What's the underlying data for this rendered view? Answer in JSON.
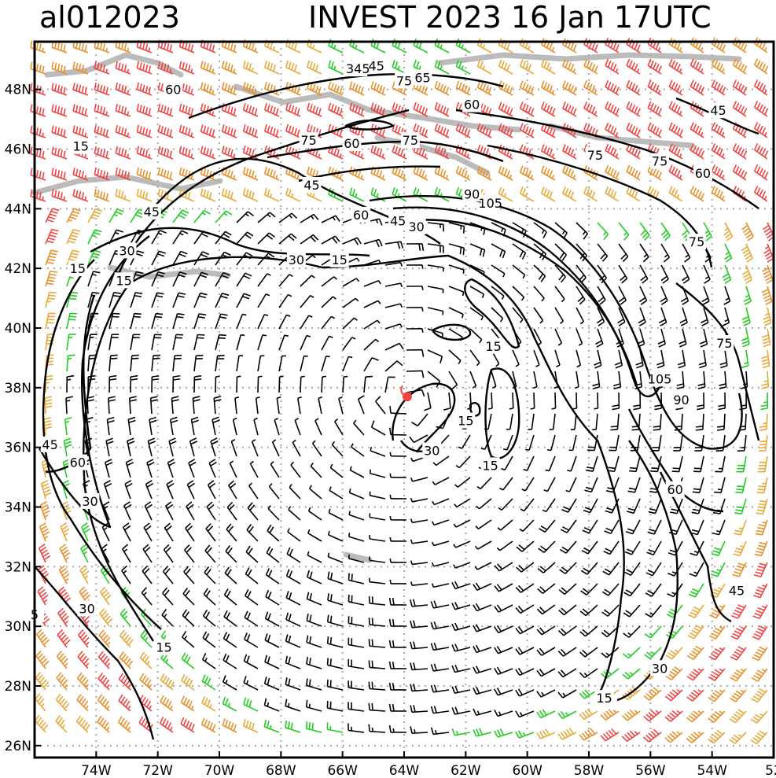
{
  "header": {
    "storm_id": "al012023",
    "title": "INVEST 2023 16 Jan 17UTC"
  },
  "map": {
    "lon_range": [
      -76,
      -52
    ],
    "lat_range": [
      25.6,
      49.6
    ],
    "lat_labels": [
      {
        "lat": 48,
        "label": "48N"
      },
      {
        "lat": 46,
        "label": "46N"
      },
      {
        "lat": 44,
        "label": "44N"
      },
      {
        "lat": 42,
        "label": "42N"
      },
      {
        "lat": 40,
        "label": "40N"
      },
      {
        "lat": 38,
        "label": "38N"
      },
      {
        "lat": 36,
        "label": "36N"
      },
      {
        "lat": 34,
        "label": "34N"
      },
      {
        "lat": 32,
        "label": "32N"
      },
      {
        "lat": 30,
        "label": "30N"
      },
      {
        "lat": 28,
        "label": "28N"
      },
      {
        "lat": 26,
        "label": "26N"
      }
    ],
    "lon_labels": [
      {
        "lon": -74,
        "label": "74W"
      },
      {
        "lon": -72,
        "label": "72W"
      },
      {
        "lon": -70,
        "label": "70W"
      },
      {
        "lon": -68,
        "label": "68W"
      },
      {
        "lon": -66,
        "label": "66W"
      },
      {
        "lon": -64,
        "label": "64W"
      },
      {
        "lon": -62,
        "label": "62W"
      },
      {
        "lon": -60,
        "label": "60W"
      },
      {
        "lon": -58,
        "label": "58W"
      },
      {
        "lon": -56,
        "label": "56W"
      },
      {
        "lon": -54,
        "label": "54W"
      },
      {
        "lon": -52,
        "label": "52"
      }
    ],
    "center": {
      "lon": -63.9,
      "lat": 37.7
    },
    "contour_labels": [
      {
        "text": "45",
        "lon": -64.9,
        "lat": 48.8
      },
      {
        "text": "345",
        "lon": -65.5,
        "lat": 48.7
      },
      {
        "text": "75",
        "lon": -64.0,
        "lat": 48.3
      },
      {
        "text": "65",
        "lon": -63.4,
        "lat": 48.4
      },
      {
        "text": "60",
        "lon": -71.5,
        "lat": 48.0
      },
      {
        "text": "60",
        "lon": -61.8,
        "lat": 47.5
      },
      {
        "text": "45",
        "lon": -53.8,
        "lat": 47.3
      },
      {
        "text": "15",
        "lon": -74.5,
        "lat": 46.1
      },
      {
        "text": "75",
        "lon": -67.1,
        "lat": 46.3
      },
      {
        "text": "60",
        "lon": -65.7,
        "lat": 46.2
      },
      {
        "text": "75",
        "lon": -63.8,
        "lat": 46.3
      },
      {
        "text": "75",
        "lon": -57.8,
        "lat": 45.8
      },
      {
        "text": "75",
        "lon": -55.7,
        "lat": 45.6
      },
      {
        "text": "60",
        "lon": -54.3,
        "lat": 45.2
      },
      {
        "text": "45",
        "lon": -67.0,
        "lat": 44.8
      },
      {
        "text": "90",
        "lon": -61.8,
        "lat": 44.5
      },
      {
        "text": "105",
        "lon": -61.2,
        "lat": 44.2
      },
      {
        "text": "45",
        "lon": -72.2,
        "lat": 43.9
      },
      {
        "text": "60",
        "lon": -65.4,
        "lat": 43.8
      },
      {
        "text": "45",
        "lon": -64.2,
        "lat": 43.6
      },
      {
        "text": "30",
        "lon": -63.6,
        "lat": 43.4
      },
      {
        "text": "75",
        "lon": -54.5,
        "lat": 42.9
      },
      {
        "text": "30",
        "lon": -73.0,
        "lat": 42.6
      },
      {
        "text": "30",
        "lon": -67.5,
        "lat": 42.3
      },
      {
        "text": "15",
        "lon": -66.1,
        "lat": 42.3
      },
      {
        "text": "15",
        "lon": -74.6,
        "lat": 42.0
      },
      {
        "text": "15",
        "lon": -73.1,
        "lat": 41.6
      },
      {
        "text": "15",
        "lon": -61.1,
        "lat": 39.4
      },
      {
        "text": "75",
        "lon": -53.6,
        "lat": 39.5
      },
      {
        "text": "105",
        "lon": -55.7,
        "lat": 38.3
      },
      {
        "text": "90",
        "lon": -55.0,
        "lat": 37.6
      },
      {
        "text": "15",
        "lon": -62.0,
        "lat": 36.9
      },
      {
        "text": "45",
        "lon": -75.5,
        "lat": 36.1
      },
      {
        "text": "60",
        "lon": -74.6,
        "lat": 35.5
      },
      {
        "text": "30",
        "lon": -63.1,
        "lat": 35.9
      },
      {
        "text": "15",
        "lon": -61.2,
        "lat": 35.4
      },
      {
        "text": "60",
        "lon": -55.2,
        "lat": 34.6
      },
      {
        "text": "30",
        "lon": -74.2,
        "lat": 34.2
      },
      {
        "text": "45",
        "lon": -53.2,
        "lat": 31.2
      },
      {
        "text": "5",
        "lon": -76.0,
        "lat": 30.4
      },
      {
        "text": "30",
        "lon": -74.3,
        "lat": 30.6
      },
      {
        "text": "15",
        "lon": -71.8,
        "lat": 29.3
      },
      {
        "text": "30",
        "lon": -55.7,
        "lat": 28.6
      },
      {
        "text": "15",
        "lon": -57.5,
        "lat": 27.6
      }
    ]
  }
}
